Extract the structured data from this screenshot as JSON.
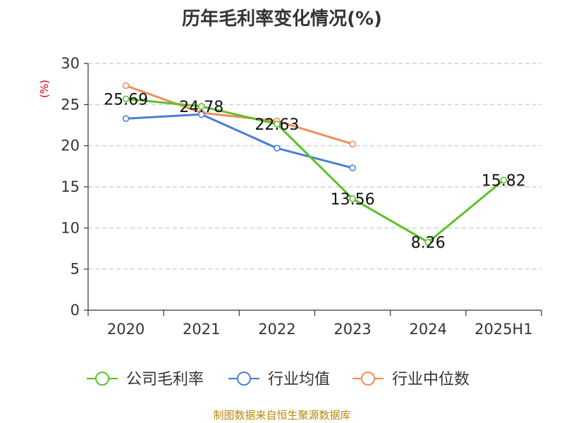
{
  "chart_data": {
    "type": "line",
    "title": "历年毛利率变化情况(%)",
    "ylabel": "(%)",
    "ylim": [
      0,
      30
    ],
    "yticks": [
      0,
      5,
      10,
      15,
      20,
      25,
      30
    ],
    "grid": true,
    "legend_position": "bottom",
    "categories": [
      "2020",
      "2021",
      "2022",
      "2023",
      "2024",
      "2025H1"
    ],
    "series": [
      {
        "name": "公司毛利率",
        "color": "#5bc227",
        "values": [
          25.69,
          24.78,
          22.63,
          13.56,
          8.26,
          15.82
        ],
        "labels": [
          "25.69",
          "24.78",
          "22.63",
          "13.56",
          "8.26",
          "15.82"
        ]
      },
      {
        "name": "行业均值",
        "color": "#4a7fd6",
        "values": [
          23.3,
          23.8,
          19.7,
          17.3,
          null,
          null
        ]
      },
      {
        "name": "行业中位数",
        "color": "#f28c5a",
        "values": [
          27.3,
          24.0,
          23.0,
          20.2,
          null,
          null
        ]
      }
    ]
  },
  "source": "制图数据来自恒生聚源数据库"
}
